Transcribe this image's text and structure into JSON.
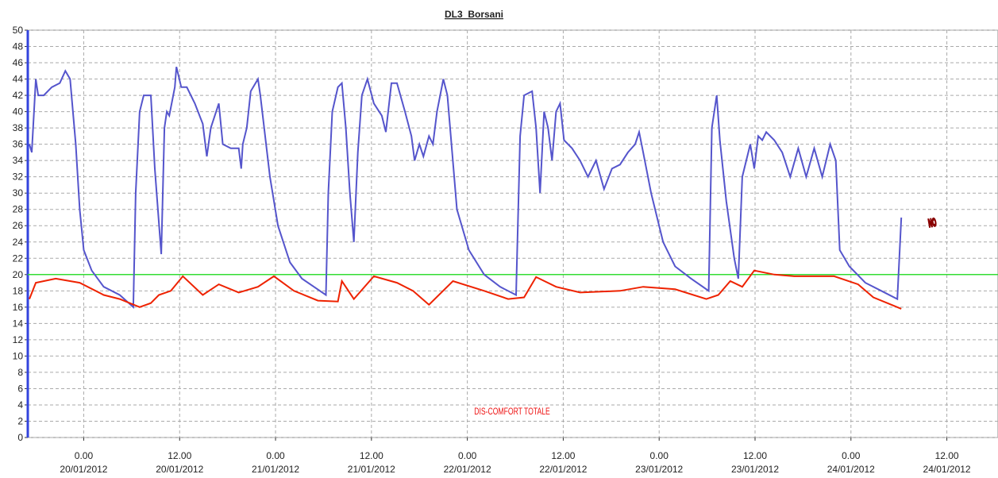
{
  "chart_data": {
    "type": "line",
    "title": "DL3_Borsani",
    "annotations": [
      "NO",
      "DIS-COMFORT TOTALE"
    ],
    "xlim": [
      -7,
      114.4
    ],
    "xticks": [
      {
        "value": 0,
        "label": "0.00 20/01/2012"
      },
      {
        "value": 12,
        "label": "12.00 20/01/2012"
      },
      {
        "value": 24,
        "label": "0.00 21/01/2012"
      },
      {
        "value": 36,
        "label": "12.00 21/01/2012"
      },
      {
        "value": 48,
        "label": "0.00 22/01/2012"
      },
      {
        "value": 60,
        "label": "12.00 22/01/2012"
      },
      {
        "value": 72,
        "label": "0.00 23/01/2012"
      },
      {
        "value": 84,
        "label": "12.00 23/01/2012"
      },
      {
        "value": 96,
        "label": "0.00 24/01/2012"
      },
      {
        "value": 108,
        "label": "12.00 24/01/2012"
      }
    ],
    "ylim": [
      0,
      50
    ],
    "yticks": [
      0,
      2,
      4,
      6,
      8,
      10,
      12,
      14,
      16,
      18,
      20,
      22,
      24,
      26,
      28,
      30,
      32,
      34,
      36,
      38,
      40,
      42,
      44,
      46,
      48,
      50
    ],
    "grid": true,
    "threshold": {
      "value": 20,
      "color": "#33dd33"
    },
    "series": [
      {
        "color": "#5555cc",
        "x": [
          -6.8,
          -6.5,
          -6,
          -5.7,
          -5,
          -4,
          -3,
          -2.3,
          -1.7,
          -1,
          -0.5,
          0,
          1,
          2.5,
          4.5,
          6.2,
          6.5,
          7,
          7.5,
          8.4,
          8.9,
          9.7,
          10.1,
          10.4,
          10.7,
          11.4,
          11.6,
          12.2,
          12.9,
          13.9,
          14.9,
          15.4,
          15.9,
          16.9,
          17.4,
          18.4,
          19.4,
          19.7,
          19.9,
          20.4,
          20.9,
          21.8,
          22.1,
          23.3,
          24.3,
          25.8,
          27.3,
          28.8,
          30.3,
          30.6,
          31.1,
          31.8,
          32.3,
          32.8,
          33.3,
          33.8,
          34.3,
          34.8,
          35.5,
          36.3,
          37.3,
          37.8,
          38.5,
          39.2,
          40.2,
          41,
          41.4,
          42,
          42.5,
          43.2,
          43.7,
          44.2,
          45,
          45.5,
          46.7,
          48.2,
          50.1,
          52.1,
          54.1,
          54.6,
          55.1,
          56.1,
          56.6,
          57.1,
          57.6,
          58.1,
          58.6,
          59.1,
          59.6,
          60.1,
          61.1,
          62.1,
          63.1,
          64.1,
          65.1,
          66.1,
          67.1,
          68.1,
          69,
          69.5,
          70,
          71,
          72.5,
          74,
          76,
          78.2,
          78.6,
          79.2,
          79.6,
          80.4,
          81.4,
          81.9,
          82.4,
          83.4,
          83.9,
          84.4,
          84.9,
          85.4,
          86.4,
          87.4,
          88.4,
          89.4,
          90.4,
          91.4,
          92.4,
          93.4,
          94.1,
          94.6,
          95.8,
          97.8,
          99.8,
          101.8,
          102.3
        ],
        "values": [
          36,
          35,
          44,
          42,
          42,
          43,
          43.5,
          45,
          44,
          36,
          28,
          23,
          20.5,
          18.5,
          17.5,
          16,
          30,
          40,
          42,
          42,
          33,
          22.5,
          38,
          40,
          39.5,
          43,
          45.5,
          43,
          43,
          41,
          38.5,
          34.5,
          38,
          41,
          36,
          35.5,
          35.5,
          33,
          36,
          38,
          42.5,
          44,
          42,
          32,
          26,
          21.5,
          19.5,
          18.5,
          17.5,
          30,
          40,
          43,
          43.5,
          38,
          30,
          24,
          35,
          42,
          44,
          41,
          39.5,
          37.5,
          43.5,
          43.5,
          40,
          37,
          34,
          36,
          34.5,
          37,
          36,
          40,
          44,
          42,
          28,
          23,
          20,
          18.5,
          17.5,
          37,
          42,
          42.5,
          38,
          30,
          40,
          38,
          34,
          40,
          41,
          36.5,
          35.5,
          34,
          32,
          34,
          30.5,
          33,
          33.5,
          35,
          36,
          37.5,
          35,
          30,
          24,
          21,
          19.5,
          18,
          38,
          42,
          36.5,
          29,
          22,
          19.5,
          32,
          36,
          33,
          37,
          36.5,
          37.5,
          36.5,
          35,
          32,
          35.5,
          32,
          35.5,
          32,
          36,
          34,
          23,
          21,
          19,
          18,
          17,
          27
        ]
      },
      {
        "color": "#ee2200",
        "x": [
          -6.8,
          -6,
          -3.5,
          -0.5,
          2.5,
          4.5,
          7,
          8.4,
          9.4,
          10.9,
          12.4,
          14.9,
          16.9,
          19.4,
          21.8,
          23.8,
          26.3,
          29.3,
          31.8,
          32.3,
          33.8,
          36.3,
          39.2,
          41.2,
          43.2,
          46.2,
          50.1,
          53.1,
          55.1,
          56.6,
          59.1,
          62.1,
          67.1,
          70,
          74,
          77.9,
          79.4,
          80.9,
          82.4,
          83.9,
          86.4,
          88.9,
          93.9,
          96.9,
          98.8,
          102.3
        ],
        "values": [
          17,
          19,
          19.5,
          19,
          17.5,
          17,
          16,
          16.5,
          17.5,
          18,
          19.8,
          17.5,
          18.8,
          17.8,
          18.5,
          19.8,
          18,
          16.8,
          16.7,
          19.2,
          17,
          19.8,
          19,
          18,
          16.3,
          19.2,
          18,
          17,
          17.2,
          19.7,
          18.5,
          17.8,
          18,
          18.5,
          18.2,
          17,
          17.5,
          19.2,
          18.5,
          20.5,
          20,
          19.8,
          19.8,
          18.8,
          17.2,
          15.8
        ]
      }
    ]
  }
}
